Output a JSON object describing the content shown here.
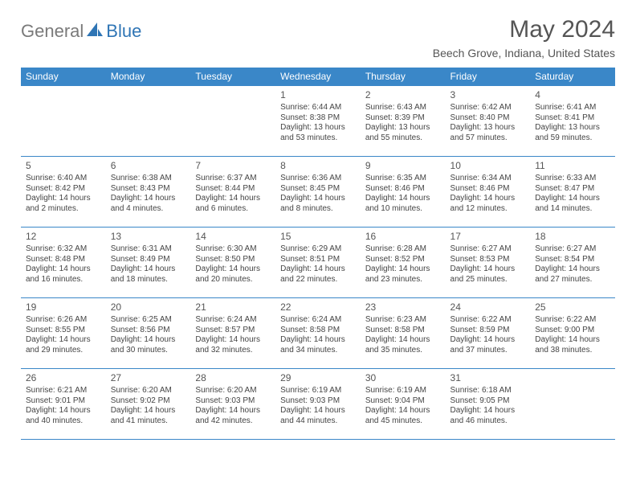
{
  "logo": {
    "part1": "General",
    "part2": "Blue"
  },
  "title": "May 2024",
  "location": "Beech Grove, Indiana, United States",
  "colors": {
    "header_bg": "#3a87c8",
    "header_text": "#ffffff",
    "border": "#3a87c8",
    "logo_gray": "#7a7a7a",
    "logo_blue": "#2f75b5"
  },
  "day_headers": [
    "Sunday",
    "Monday",
    "Tuesday",
    "Wednesday",
    "Thursday",
    "Friday",
    "Saturday"
  ],
  "weeks": [
    [
      null,
      null,
      null,
      {
        "d": "1",
        "sr": "Sunrise: 6:44 AM",
        "ss": "Sunset: 8:38 PM",
        "dl": "Daylight: 13 hours and 53 minutes."
      },
      {
        "d": "2",
        "sr": "Sunrise: 6:43 AM",
        "ss": "Sunset: 8:39 PM",
        "dl": "Daylight: 13 hours and 55 minutes."
      },
      {
        "d": "3",
        "sr": "Sunrise: 6:42 AM",
        "ss": "Sunset: 8:40 PM",
        "dl": "Daylight: 13 hours and 57 minutes."
      },
      {
        "d": "4",
        "sr": "Sunrise: 6:41 AM",
        "ss": "Sunset: 8:41 PM",
        "dl": "Daylight: 13 hours and 59 minutes."
      }
    ],
    [
      {
        "d": "5",
        "sr": "Sunrise: 6:40 AM",
        "ss": "Sunset: 8:42 PM",
        "dl": "Daylight: 14 hours and 2 minutes."
      },
      {
        "d": "6",
        "sr": "Sunrise: 6:38 AM",
        "ss": "Sunset: 8:43 PM",
        "dl": "Daylight: 14 hours and 4 minutes."
      },
      {
        "d": "7",
        "sr": "Sunrise: 6:37 AM",
        "ss": "Sunset: 8:44 PM",
        "dl": "Daylight: 14 hours and 6 minutes."
      },
      {
        "d": "8",
        "sr": "Sunrise: 6:36 AM",
        "ss": "Sunset: 8:45 PM",
        "dl": "Daylight: 14 hours and 8 minutes."
      },
      {
        "d": "9",
        "sr": "Sunrise: 6:35 AM",
        "ss": "Sunset: 8:46 PM",
        "dl": "Daylight: 14 hours and 10 minutes."
      },
      {
        "d": "10",
        "sr": "Sunrise: 6:34 AM",
        "ss": "Sunset: 8:46 PM",
        "dl": "Daylight: 14 hours and 12 minutes."
      },
      {
        "d": "11",
        "sr": "Sunrise: 6:33 AM",
        "ss": "Sunset: 8:47 PM",
        "dl": "Daylight: 14 hours and 14 minutes."
      }
    ],
    [
      {
        "d": "12",
        "sr": "Sunrise: 6:32 AM",
        "ss": "Sunset: 8:48 PM",
        "dl": "Daylight: 14 hours and 16 minutes."
      },
      {
        "d": "13",
        "sr": "Sunrise: 6:31 AM",
        "ss": "Sunset: 8:49 PM",
        "dl": "Daylight: 14 hours and 18 minutes."
      },
      {
        "d": "14",
        "sr": "Sunrise: 6:30 AM",
        "ss": "Sunset: 8:50 PM",
        "dl": "Daylight: 14 hours and 20 minutes."
      },
      {
        "d": "15",
        "sr": "Sunrise: 6:29 AM",
        "ss": "Sunset: 8:51 PM",
        "dl": "Daylight: 14 hours and 22 minutes."
      },
      {
        "d": "16",
        "sr": "Sunrise: 6:28 AM",
        "ss": "Sunset: 8:52 PM",
        "dl": "Daylight: 14 hours and 23 minutes."
      },
      {
        "d": "17",
        "sr": "Sunrise: 6:27 AM",
        "ss": "Sunset: 8:53 PM",
        "dl": "Daylight: 14 hours and 25 minutes."
      },
      {
        "d": "18",
        "sr": "Sunrise: 6:27 AM",
        "ss": "Sunset: 8:54 PM",
        "dl": "Daylight: 14 hours and 27 minutes."
      }
    ],
    [
      {
        "d": "19",
        "sr": "Sunrise: 6:26 AM",
        "ss": "Sunset: 8:55 PM",
        "dl": "Daylight: 14 hours and 29 minutes."
      },
      {
        "d": "20",
        "sr": "Sunrise: 6:25 AM",
        "ss": "Sunset: 8:56 PM",
        "dl": "Daylight: 14 hours and 30 minutes."
      },
      {
        "d": "21",
        "sr": "Sunrise: 6:24 AM",
        "ss": "Sunset: 8:57 PM",
        "dl": "Daylight: 14 hours and 32 minutes."
      },
      {
        "d": "22",
        "sr": "Sunrise: 6:24 AM",
        "ss": "Sunset: 8:58 PM",
        "dl": "Daylight: 14 hours and 34 minutes."
      },
      {
        "d": "23",
        "sr": "Sunrise: 6:23 AM",
        "ss": "Sunset: 8:58 PM",
        "dl": "Daylight: 14 hours and 35 minutes."
      },
      {
        "d": "24",
        "sr": "Sunrise: 6:22 AM",
        "ss": "Sunset: 8:59 PM",
        "dl": "Daylight: 14 hours and 37 minutes."
      },
      {
        "d": "25",
        "sr": "Sunrise: 6:22 AM",
        "ss": "Sunset: 9:00 PM",
        "dl": "Daylight: 14 hours and 38 minutes."
      }
    ],
    [
      {
        "d": "26",
        "sr": "Sunrise: 6:21 AM",
        "ss": "Sunset: 9:01 PM",
        "dl": "Daylight: 14 hours and 40 minutes."
      },
      {
        "d": "27",
        "sr": "Sunrise: 6:20 AM",
        "ss": "Sunset: 9:02 PM",
        "dl": "Daylight: 14 hours and 41 minutes."
      },
      {
        "d": "28",
        "sr": "Sunrise: 6:20 AM",
        "ss": "Sunset: 9:03 PM",
        "dl": "Daylight: 14 hours and 42 minutes."
      },
      {
        "d": "29",
        "sr": "Sunrise: 6:19 AM",
        "ss": "Sunset: 9:03 PM",
        "dl": "Daylight: 14 hours and 44 minutes."
      },
      {
        "d": "30",
        "sr": "Sunrise: 6:19 AM",
        "ss": "Sunset: 9:04 PM",
        "dl": "Daylight: 14 hours and 45 minutes."
      },
      {
        "d": "31",
        "sr": "Sunrise: 6:18 AM",
        "ss": "Sunset: 9:05 PM",
        "dl": "Daylight: 14 hours and 46 minutes."
      },
      null
    ]
  ]
}
